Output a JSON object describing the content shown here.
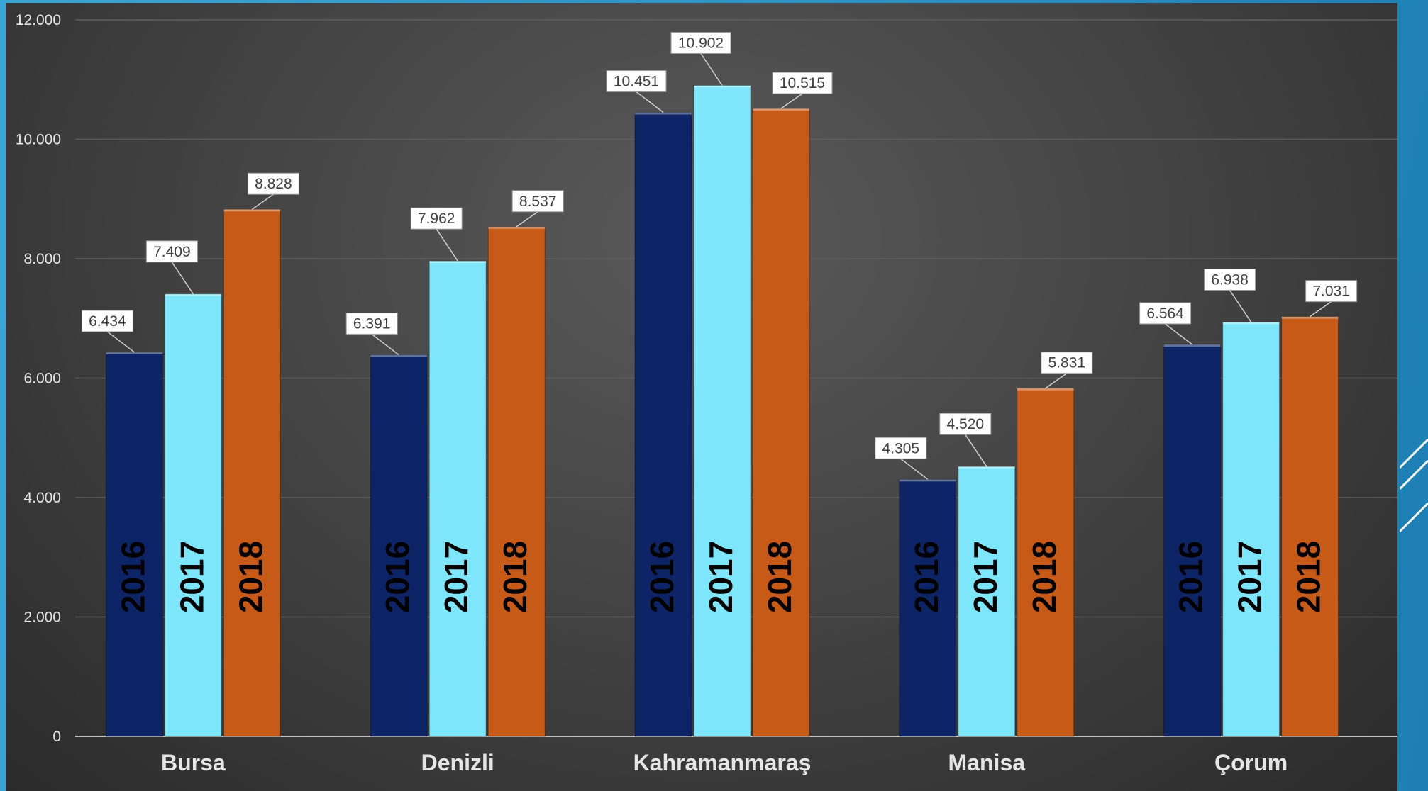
{
  "chart_data": {
    "type": "bar",
    "title": "",
    "xlabel": "",
    "ylabel": "",
    "categories": [
      "Bursa",
      "Denizli",
      "Kahramanmaraş",
      "Manisa",
      "Çorum"
    ],
    "series": [
      {
        "name": "2016",
        "values": [
          6434,
          6391,
          10451,
          4305,
          6564
        ],
        "labels": [
          "6.434",
          "6.391",
          "10.451",
          "4.305",
          "6.564"
        ],
        "color": "#0d2566"
      },
      {
        "name": "2017",
        "values": [
          7409,
          7962,
          10902,
          4520,
          6938
        ],
        "labels": [
          "7.409",
          "7.962",
          "10.902",
          "4.520",
          "6.938"
        ],
        "color": "#7de6fb"
      },
      {
        "name": "2018",
        "values": [
          8828,
          8537,
          10515,
          5831,
          7031
        ],
        "labels": [
          "8.828",
          "8.537",
          "10.515",
          "5.831",
          "7.031"
        ],
        "color": "#c85a18"
      }
    ],
    "ylim": [
      0,
      12000
    ],
    "yticks": [
      0,
      2000,
      4000,
      6000,
      8000,
      10000,
      12000
    ],
    "ytick_labels": [
      "0",
      "2.000",
      "4.000",
      "6.000",
      "8.000",
      "10.000",
      "12.000"
    ],
    "grid": true,
    "legend": "none",
    "series_label_inside_bars": true
  },
  "colors": {
    "background": "#3d3d3d",
    "grid": "#5e5e5e",
    "axis_text": "#e6e6e6",
    "category_text": "#e6e6e6",
    "frame_accent": "#2a8fc0"
  }
}
